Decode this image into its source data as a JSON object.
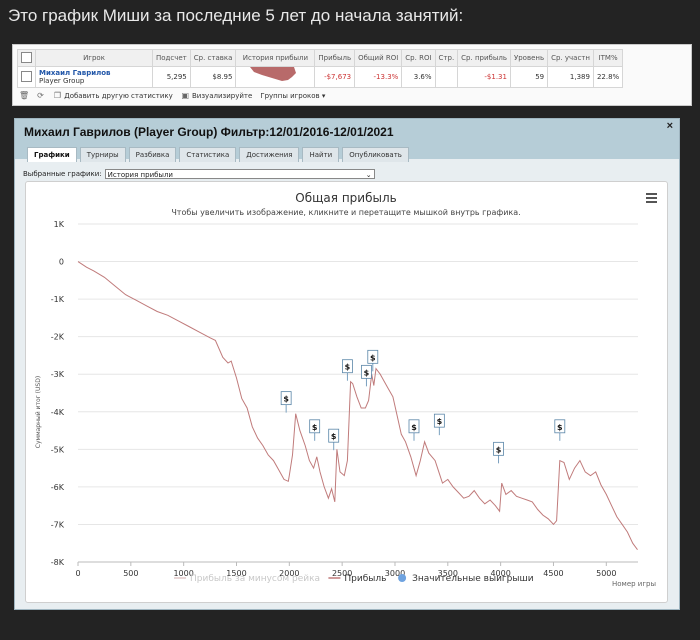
{
  "caption": "Это график Миши за последние 5 лет до начала занятий:",
  "stats_table": {
    "headers": [
      "Игрок",
      "Подсчет",
      "Ср. ставка",
      "История прибыли",
      "Прибыль",
      "Общий ROI",
      "Ср. ROI",
      "Стр.",
      "Ср. прибыль",
      "Уровень",
      "Ср. участн",
      "ITM%"
    ],
    "row": {
      "player_name": "Михаил Гаврилов",
      "player_group": "Player Group",
      "count": "5,295",
      "avg_stake": "$8.95",
      "profit": "-$7,673",
      "total_roi": "-13.3%",
      "avg_roi": "3.6%",
      "str": "",
      "avg_profit": "-$1.31",
      "level": "59",
      "avg_participants": "1,389",
      "itm": "22.8%"
    }
  },
  "toolbar": {
    "add_stat": "Добавить другую статистику",
    "visualize": "Визуализируйте",
    "player_groups": "Группы игроков"
  },
  "window": {
    "title": "Михаил Гаврилов (Player Group) Фильтр:12/01/2016-12/01/2021",
    "close": "×",
    "tabs": [
      "Графики",
      "Турниры",
      "Разбивка",
      "Статистика",
      "Достижения",
      "Найти",
      "Опубликовать"
    ],
    "selected_label": "Выбранные графики:",
    "selected_value": "История прибыли"
  },
  "chart_data": {
    "type": "line",
    "title": "Общая прибыль",
    "subtitle": "Чтобы увеличить изображение, кликните и перетащите мышкой внутрь графика.",
    "xlabel": "Номер игры",
    "ylabel": "Суммарный итог (USD)",
    "xlim": [
      0,
      5300
    ],
    "ylim": [
      -8000,
      1000
    ],
    "x_ticks": [
      0,
      500,
      1000,
      1500,
      2000,
      2500,
      3000,
      3500,
      4000,
      4500,
      5000
    ],
    "y_ticks": [
      1000,
      0,
      -1000,
      -2000,
      -3000,
      -4000,
      -5000,
      -6000,
      -7000,
      -8000
    ],
    "y_tick_labels": [
      "1K",
      "0",
      "-1K",
      "-2K",
      "-3K",
      "-4K",
      "-5K",
      "-6K",
      "-7K",
      "-8K"
    ],
    "grid": true,
    "legend_position": "bottom",
    "series": [
      {
        "name": "Прибыль",
        "color": "#c07b7b",
        "points": [
          [
            0,
            0
          ],
          [
            80,
            -150
          ],
          [
            150,
            -250
          ],
          [
            250,
            -420
          ],
          [
            350,
            -650
          ],
          [
            450,
            -880
          ],
          [
            550,
            -1030
          ],
          [
            650,
            -1180
          ],
          [
            750,
            -1330
          ],
          [
            850,
            -1430
          ],
          [
            950,
            -1580
          ],
          [
            1050,
            -1730
          ],
          [
            1150,
            -1880
          ],
          [
            1250,
            -2030
          ],
          [
            1300,
            -2100
          ],
          [
            1370,
            -2550
          ],
          [
            1420,
            -2700
          ],
          [
            1450,
            -2650
          ],
          [
            1500,
            -3100
          ],
          [
            1550,
            -3650
          ],
          [
            1600,
            -3900
          ],
          [
            1650,
            -4400
          ],
          [
            1700,
            -4700
          ],
          [
            1750,
            -4900
          ],
          [
            1800,
            -5150
          ],
          [
            1850,
            -5300
          ],
          [
            1900,
            -5550
          ],
          [
            1950,
            -5800
          ],
          [
            1990,
            -5850
          ],
          [
            2000,
            -5700
          ],
          [
            2030,
            -5150
          ],
          [
            2060,
            -4050
          ],
          [
            2100,
            -4500
          ],
          [
            2150,
            -4900
          ],
          [
            2190,
            -5300
          ],
          [
            2230,
            -5500
          ],
          [
            2260,
            -5200
          ],
          [
            2290,
            -5600
          ],
          [
            2330,
            -6000
          ],
          [
            2370,
            -6300
          ],
          [
            2400,
            -6050
          ],
          [
            2430,
            -6400
          ],
          [
            2450,
            -5000
          ],
          [
            2480,
            -5600
          ],
          [
            2520,
            -5700
          ],
          [
            2550,
            -5300
          ],
          [
            2580,
            -3200
          ],
          [
            2600,
            -3250
          ],
          [
            2640,
            -3600
          ],
          [
            2680,
            -3900
          ],
          [
            2720,
            -3900
          ],
          [
            2750,
            -3700
          ],
          [
            2780,
            -3000
          ],
          [
            2800,
            -3300
          ],
          [
            2820,
            -2850
          ],
          [
            2860,
            -3000
          ],
          [
            2900,
            -3200
          ],
          [
            2940,
            -3400
          ],
          [
            2980,
            -3600
          ],
          [
            3020,
            -4100
          ],
          [
            3060,
            -4600
          ],
          [
            3100,
            -4800
          ],
          [
            3150,
            -5200
          ],
          [
            3200,
            -5700
          ],
          [
            3240,
            -5300
          ],
          [
            3280,
            -4800
          ],
          [
            3320,
            -5100
          ],
          [
            3380,
            -5300
          ],
          [
            3420,
            -5650
          ],
          [
            3450,
            -5900
          ],
          [
            3500,
            -5800
          ],
          [
            3550,
            -6000
          ],
          [
            3600,
            -6150
          ],
          [
            3650,
            -6300
          ],
          [
            3700,
            -6250
          ],
          [
            3750,
            -6100
          ],
          [
            3800,
            -6300
          ],
          [
            3850,
            -6450
          ],
          [
            3900,
            -6350
          ],
          [
            3950,
            -6500
          ],
          [
            3990,
            -6650
          ],
          [
            4010,
            -5900
          ],
          [
            4050,
            -6200
          ],
          [
            4100,
            -6100
          ],
          [
            4150,
            -6250
          ],
          [
            4200,
            -6300
          ],
          [
            4250,
            -6350
          ],
          [
            4300,
            -6400
          ],
          [
            4350,
            -6600
          ],
          [
            4400,
            -6750
          ],
          [
            4450,
            -6850
          ],
          [
            4500,
            -7000
          ],
          [
            4530,
            -6900
          ],
          [
            4560,
            -5300
          ],
          [
            4600,
            -5350
          ],
          [
            4650,
            -5800
          ],
          [
            4700,
            -5500
          ],
          [
            4750,
            -5300
          ],
          [
            4800,
            -5600
          ],
          [
            4850,
            -5700
          ],
          [
            4900,
            -5600
          ],
          [
            4950,
            -5950
          ],
          [
            5000,
            -6200
          ],
          [
            5050,
            -6500
          ],
          [
            5100,
            -6800
          ],
          [
            5150,
            -7000
          ],
          [
            5200,
            -7200
          ],
          [
            5250,
            -7500
          ],
          [
            5295,
            -7673
          ]
        ]
      }
    ],
    "legend_entries": [
      {
        "label": "Прибыль за минусом рейка",
        "color": "#e0c9c9",
        "muted": true
      },
      {
        "label": "Прибыль",
        "color": "#c07b7b",
        "muted": false
      },
      {
        "label": "Значительные выигрыши",
        "color": "#6fa3e0",
        "marker": "circle",
        "muted": false
      }
    ],
    "flags": [
      {
        "x": 1970,
        "y": -3650,
        "label": "$"
      },
      {
        "x": 2240,
        "y": -4400,
        "label": "$"
      },
      {
        "x": 2420,
        "y": -4650,
        "label": "$"
      },
      {
        "x": 2550,
        "y": -2800,
        "label": "$"
      },
      {
        "x": 2730,
        "y": -2950,
        "label": "$"
      },
      {
        "x": 2790,
        "y": -2550,
        "label": "$"
      },
      {
        "x": 3180,
        "y": -4400,
        "label": "$"
      },
      {
        "x": 3420,
        "y": -4250,
        "label": "$"
      },
      {
        "x": 3980,
        "y": -5000,
        "label": "$"
      },
      {
        "x": 4560,
        "y": -4400,
        "label": "$"
      }
    ],
    "menu_icon": "hamburger-menu-icon"
  }
}
